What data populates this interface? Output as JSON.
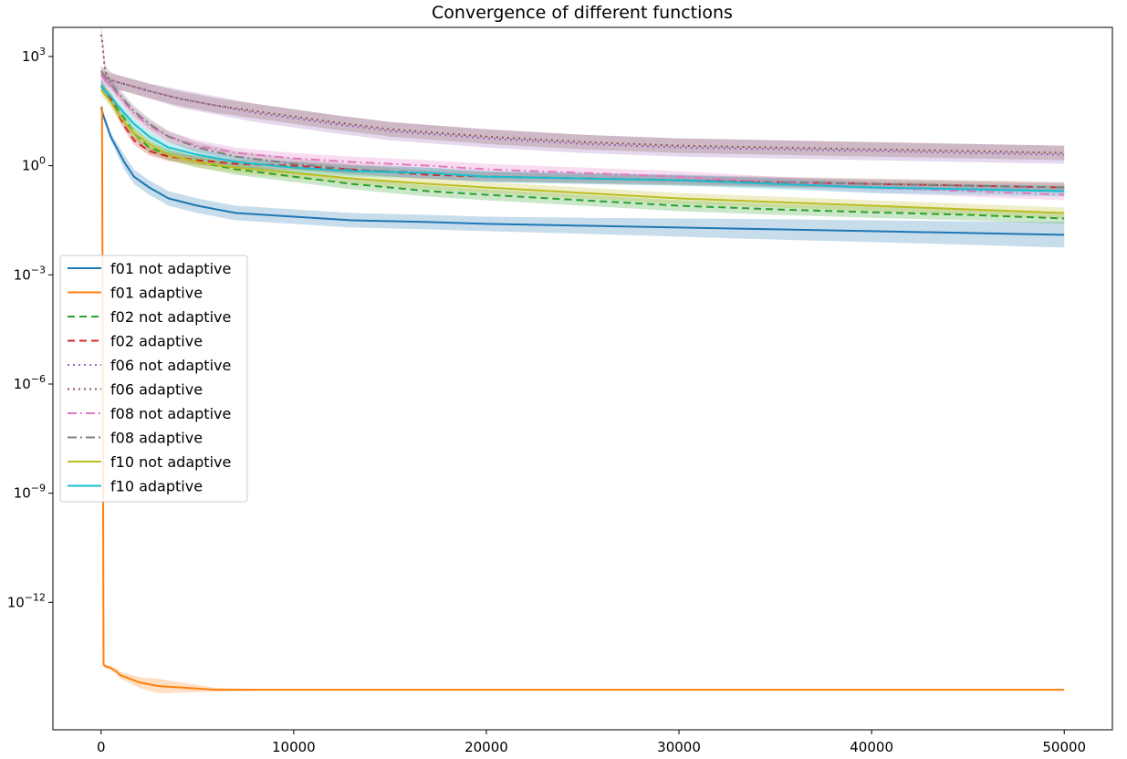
{
  "chart_data": {
    "type": "line",
    "title": "Convergence of different functions",
    "xlabel": "",
    "ylabel": "",
    "xlim": [
      -2500,
      52500
    ],
    "ylim_log10": [
      -15.5,
      3.8
    ],
    "yscale": "log",
    "grid": false,
    "legend_position": "left-middle",
    "x_ticks": [
      0,
      10000,
      20000,
      30000,
      40000,
      50000
    ],
    "x_tick_labels": [
      "0",
      "10000",
      "20000",
      "30000",
      "40000",
      "50000"
    ],
    "y_ticks_log10": [
      3,
      0,
      -3,
      -6,
      -9,
      -12
    ],
    "y_tick_labels": [
      {
        "base": "10",
        "exp": "3"
      },
      {
        "base": "10",
        "exp": "0"
      },
      {
        "base": "10",
        "exp": "−3"
      },
      {
        "base": "10",
        "exp": "−6"
      },
      {
        "base": "10",
        "exp": "−9"
      },
      {
        "base": "10",
        "exp": "−12"
      }
    ],
    "series": [
      {
        "name": "f01 not adaptive",
        "color": "#1f77b4",
        "dash": "solid",
        "x": [
          0,
          100,
          300,
          500,
          800,
          1200,
          1700,
          2500,
          3500,
          5000,
          7000,
          10000,
          13000,
          17000,
          20000,
          25000,
          30000,
          35000,
          40000,
          45000,
          50000
        ],
        "y_log10": [
          1.6,
          1.4,
          1.1,
          0.8,
          0.5,
          0.1,
          -0.3,
          -0.6,
          -0.9,
          -1.1,
          -1.3,
          -1.4,
          -1.5,
          -1.55,
          -1.6,
          -1.65,
          -1.7,
          -1.75,
          -1.8,
          -1.85,
          -1.9
        ],
        "band_log10": [
          0.1,
          0.1,
          0.1,
          0.12,
          0.15,
          0.2,
          0.2,
          0.2,
          0.2,
          0.2,
          0.2,
          0.2,
          0.2,
          0.2,
          0.2,
          0.22,
          0.25,
          0.28,
          0.3,
          0.32,
          0.35
        ]
      },
      {
        "name": "f01 adaptive",
        "color": "#ff7f0e",
        "dash": "solid",
        "x": [
          0,
          50,
          100,
          130,
          200,
          500,
          800,
          1000,
          1500,
          2000,
          3000,
          4500,
          6000,
          10000,
          20000,
          30000,
          40000,
          50000
        ],
        "y_log10": [
          1.6,
          1.6,
          -8.0,
          -13.7,
          -13.75,
          -13.8,
          -13.9,
          -14.0,
          -14.1,
          -14.2,
          -14.3,
          -14.35,
          -14.4,
          -14.4,
          -14.4,
          -14.4,
          -14.4,
          -14.4
        ],
        "band_log10": [
          0.05,
          0.05,
          0.5,
          0.05,
          0.05,
          0.06,
          0.08,
          0.1,
          0.12,
          0.15,
          0.2,
          0.12,
          0.05,
          0.0,
          0.0,
          0.0,
          0.0,
          0.0
        ]
      },
      {
        "name": "f02 not adaptive",
        "color": "#2ca02c",
        "dash": "8,5",
        "x": [
          0,
          200,
          500,
          800,
          1200,
          1700,
          2500,
          3500,
          5000,
          7000,
          10000,
          13000,
          17000,
          20000,
          25000,
          30000,
          35000,
          40000,
          45000,
          50000
        ],
        "y_log10": [
          2.2,
          2.05,
          1.85,
          1.6,
          1.3,
          0.9,
          0.5,
          0.3,
          0.1,
          -0.1,
          -0.3,
          -0.5,
          -0.7,
          -0.8,
          -0.95,
          -1.1,
          -1.2,
          -1.28,
          -1.35,
          -1.45
        ],
        "band_log10": [
          0.15,
          0.15,
          0.15,
          0.15,
          0.15,
          0.15,
          0.15,
          0.15,
          0.15,
          0.15,
          0.15,
          0.15,
          0.15,
          0.15,
          0.15,
          0.15,
          0.15,
          0.15,
          0.15,
          0.15
        ]
      },
      {
        "name": "f02 adaptive",
        "color": "#d62728",
        "dash": "8,5",
        "x": [
          0,
          200,
          500,
          800,
          1200,
          1700,
          2500,
          3500,
          5000,
          7000,
          10000,
          13000,
          17000,
          20000,
          25000,
          30000,
          35000,
          40000,
          45000,
          50000
        ],
        "y_log10": [
          2.2,
          2.05,
          1.85,
          1.5,
          1.1,
          0.7,
          0.4,
          0.25,
          0.15,
          0.05,
          0.0,
          -0.1,
          -0.25,
          -0.3,
          -0.35,
          -0.4,
          -0.45,
          -0.5,
          -0.55,
          -0.6
        ],
        "band_log10": [
          0.12,
          0.12,
          0.12,
          0.12,
          0.12,
          0.12,
          0.12,
          0.12,
          0.12,
          0.12,
          0.12,
          0.12,
          0.12,
          0.12,
          0.12,
          0.12,
          0.12,
          0.12,
          0.12,
          0.12
        ]
      },
      {
        "name": "f06 not adaptive",
        "color": "#9467bd",
        "dash": "2,4",
        "x": [
          0,
          100,
          200,
          400,
          800,
          1500,
          2500,
          4000,
          6000,
          8000,
          10000,
          12000,
          15000,
          20000,
          25000,
          30000,
          35000,
          40000,
          45000,
          50000
        ],
        "y_log10": [
          2.5,
          2.45,
          2.4,
          2.35,
          2.3,
          2.2,
          2.05,
          1.85,
          1.65,
          1.45,
          1.3,
          1.15,
          0.95,
          0.75,
          0.6,
          0.5,
          0.45,
          0.4,
          0.35,
          0.3
        ],
        "band_log10": [
          0.2,
          0.2,
          0.2,
          0.2,
          0.2,
          0.2,
          0.2,
          0.25,
          0.25,
          0.25,
          0.25,
          0.25,
          0.25,
          0.25,
          0.25,
          0.25,
          0.25,
          0.25,
          0.25,
          0.25
        ]
      },
      {
        "name": "f06 adaptive",
        "color": "#8c564b",
        "dash": "2,4",
        "x": [
          0,
          50,
          100,
          200,
          400,
          800,
          1500,
          2500,
          4000,
          6000,
          8000,
          10000,
          12000,
          15000,
          20000,
          25000,
          30000,
          35000,
          40000,
          45000,
          50000
        ],
        "y_log10": [
          3.6,
          3.5,
          3.2,
          2.6,
          2.4,
          2.3,
          2.2,
          2.05,
          1.85,
          1.65,
          1.5,
          1.35,
          1.2,
          1.0,
          0.8,
          0.65,
          0.55,
          0.5,
          0.45,
          0.4,
          0.35
        ],
        "band_log10": [
          0.2,
          0.2,
          0.2,
          0.2,
          0.2,
          0.2,
          0.2,
          0.2,
          0.2,
          0.2,
          0.2,
          0.2,
          0.2,
          0.2,
          0.2,
          0.2,
          0.2,
          0.2,
          0.2,
          0.2,
          0.2
        ]
      },
      {
        "name": "f08 not adaptive",
        "color": "#e377c2",
        "dash": "10,4,2,4",
        "x": [
          0,
          200,
          500,
          800,
          1200,
          1700,
          2500,
          3500,
          5000,
          7000,
          10000,
          13000,
          17000,
          20000,
          25000,
          30000,
          35000,
          40000,
          45000,
          50000
        ],
        "y_log10": [
          2.5,
          2.35,
          2.2,
          2.0,
          1.75,
          1.45,
          1.1,
          0.8,
          0.55,
          0.35,
          0.2,
          0.1,
          0.0,
          -0.1,
          -0.2,
          -0.3,
          -0.45,
          -0.6,
          -0.7,
          -0.8
        ],
        "band_log10": [
          0.15,
          0.15,
          0.15,
          0.15,
          0.15,
          0.15,
          0.15,
          0.15,
          0.15,
          0.15,
          0.15,
          0.15,
          0.15,
          0.15,
          0.15,
          0.15,
          0.15,
          0.15,
          0.15,
          0.15
        ]
      },
      {
        "name": "f08 adaptive",
        "color": "#7f7f7f",
        "dash": "10,4,2,4",
        "x": [
          0,
          200,
          500,
          800,
          1200,
          1700,
          2500,
          3500,
          5000,
          7000,
          10000,
          13000,
          17000,
          20000,
          25000,
          30000,
          35000,
          40000,
          45000,
          50000
        ],
        "y_log10": [
          2.6,
          2.45,
          2.25,
          2.05,
          1.8,
          1.5,
          1.15,
          0.8,
          0.5,
          0.25,
          0.05,
          -0.1,
          -0.2,
          -0.3,
          -0.35,
          -0.4,
          -0.45,
          -0.5,
          -0.55,
          -0.6
        ],
        "band_log10": [
          0.15,
          0.15,
          0.15,
          0.15,
          0.15,
          0.15,
          0.15,
          0.15,
          0.15,
          0.15,
          0.15,
          0.15,
          0.15,
          0.15,
          0.15,
          0.15,
          0.15,
          0.15,
          0.15,
          0.15
        ]
      },
      {
        "name": "f10 not adaptive",
        "color": "#bcbd22",
        "dash": "solid",
        "x": [
          0,
          200,
          500,
          800,
          1200,
          1700,
          2500,
          3500,
          5000,
          7000,
          10000,
          13000,
          17000,
          20000,
          25000,
          30000,
          35000,
          40000,
          45000,
          50000
        ],
        "y_log10": [
          2.1,
          1.95,
          1.75,
          1.5,
          1.2,
          0.9,
          0.6,
          0.3,
          0.1,
          -0.05,
          -0.2,
          -0.35,
          -0.5,
          -0.6,
          -0.75,
          -0.9,
          -1.0,
          -1.1,
          -1.2,
          -1.3
        ],
        "band_log10": [
          0.15,
          0.15,
          0.15,
          0.15,
          0.15,
          0.15,
          0.15,
          0.15,
          0.15,
          0.15,
          0.15,
          0.15,
          0.15,
          0.15,
          0.15,
          0.15,
          0.15,
          0.15,
          0.15,
          0.15
        ]
      },
      {
        "name": "f10 adaptive",
        "color": "#17becf",
        "dash": "solid",
        "x": [
          0,
          200,
          500,
          800,
          1200,
          1700,
          2500,
          3500,
          5000,
          7000,
          10000,
          13000,
          17000,
          20000,
          25000,
          30000,
          35000,
          40000,
          45000,
          50000
        ],
        "y_log10": [
          2.2,
          2.05,
          1.9,
          1.7,
          1.45,
          1.15,
          0.8,
          0.5,
          0.3,
          0.1,
          -0.05,
          -0.15,
          -0.2,
          -0.3,
          -0.35,
          -0.4,
          -0.5,
          -0.6,
          -0.65,
          -0.7
        ],
        "band_log10": [
          0.15,
          0.15,
          0.15,
          0.15,
          0.15,
          0.15,
          0.15,
          0.15,
          0.15,
          0.15,
          0.15,
          0.15,
          0.15,
          0.15,
          0.15,
          0.15,
          0.15,
          0.15,
          0.15,
          0.15
        ]
      }
    ]
  }
}
